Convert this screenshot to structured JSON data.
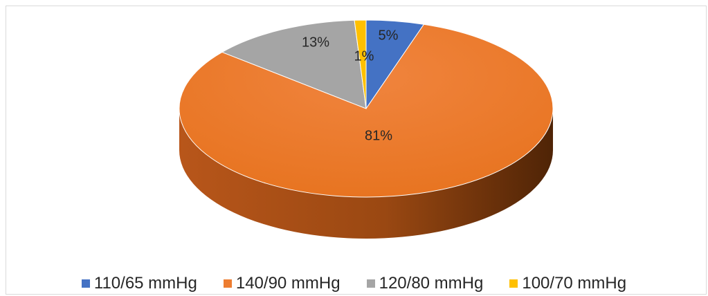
{
  "chart_data": {
    "type": "pie",
    "title": "",
    "categories": [
      "110/65 mmHg",
      "140/90 mmHg",
      "120/80 mmHg",
      "100/70 mmHg"
    ],
    "values": [
      5,
      81,
      13,
      1
    ],
    "data_labels": [
      "5%",
      "81%",
      "13%",
      "1%"
    ],
    "colors": [
      "#4472c4",
      "#ed7d31",
      "#a5a5a5",
      "#ffc000"
    ],
    "legend_position": "bottom",
    "style": "3d"
  }
}
